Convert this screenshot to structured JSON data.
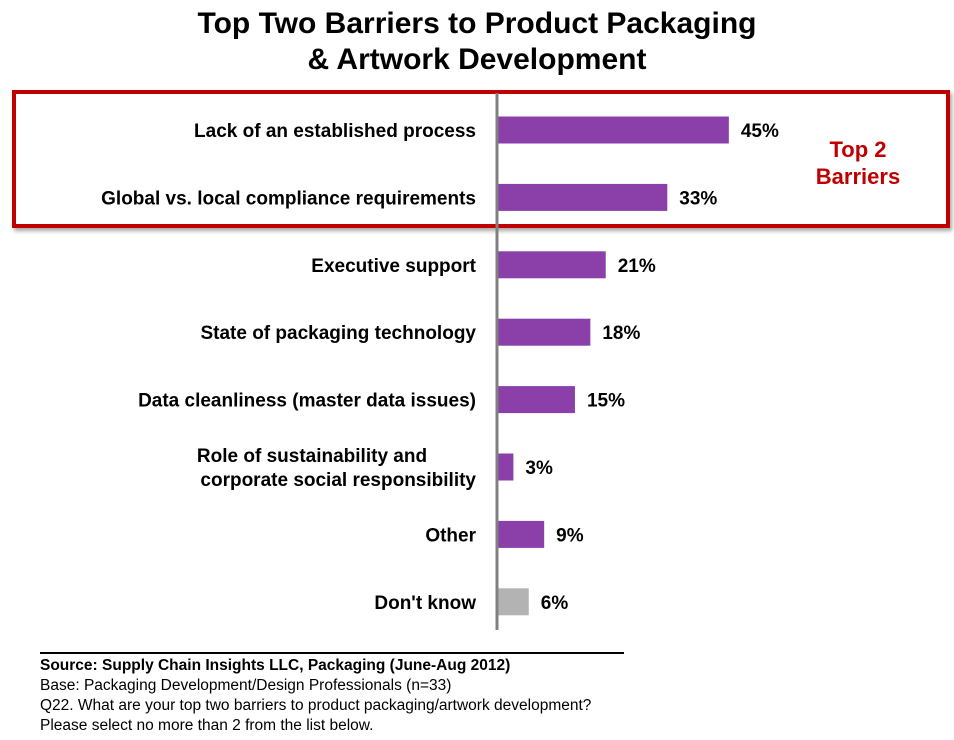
{
  "chart_data": {
    "type": "bar",
    "orientation": "horizontal",
    "title_lines": [
      "Top Two Barriers to Product Packaging",
      "& Artwork Development"
    ],
    "categories": [
      [
        "Lack of an established process"
      ],
      [
        "Global vs. local compliance requirements"
      ],
      [
        "Executive support"
      ],
      [
        "State of packaging technology"
      ],
      [
        "Data cleanliness (master data issues)"
      ],
      [
        "Role of sustainability and",
        "corporate social responsibility"
      ],
      [
        "Other"
      ],
      [
        "Don't know"
      ]
    ],
    "values": [
      45,
      33,
      21,
      18,
      15,
      3,
      9,
      6
    ],
    "value_labels": [
      "45%",
      "33%",
      "21%",
      "18%",
      "15%",
      "3%",
      "9%",
      "6%"
    ],
    "colors": [
      "#8b3fa8",
      "#8b3fa8",
      "#8b3fa8",
      "#8b3fa8",
      "#8b3fa8",
      "#8b3fa8",
      "#8b3fa8",
      "#b3b3b3"
    ],
    "xlim": [
      0,
      50
    ],
    "grid": false,
    "annotation": {
      "lines": [
        "Top 2",
        "Barriers"
      ],
      "color": "#c00000",
      "highlighted_categories": [
        0,
        1
      ]
    }
  },
  "footer": {
    "source": "Source:  Supply Chain Insights LLC, Packaging (June-Aug 2012)",
    "base": "Base:  Packaging Development/Design Professionals (n=33)",
    "question": "Q22. What are your top two barriers to product packaging/artwork development?",
    "instruction": "Please select no more than 2 from the list below."
  }
}
